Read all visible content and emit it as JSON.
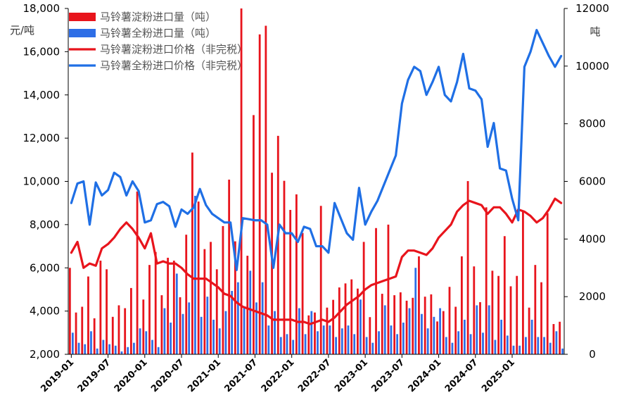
{
  "chart_data": {
    "type": "bar+line",
    "title": "",
    "x_tick_labels": [
      "2019-01",
      "2019-07",
      "2020-01",
      "2020-07",
      "2021-01",
      "2021-07",
      "2022-01",
      "2022-07",
      "2023-01",
      "2023-07",
      "2024-01",
      "2024-07",
      "2025-01"
    ],
    "left_axis": {
      "unit": "元/吨",
      "range": [
        2000,
        18000
      ],
      "ticks": [
        "2,000",
        "4,000",
        "6,000",
        "8,000",
        "10,000",
        "12,000",
        "14,000",
        "16,000",
        "18,000"
      ]
    },
    "right_axis": {
      "unit": "吨",
      "range": [
        0,
        12000
      ],
      "ticks": [
        "0",
        "2000",
        "4000",
        "6000",
        "8000",
        "10000",
        "12000"
      ]
    },
    "legend_position": "top-left",
    "colors": {
      "starch_bar": "#e8141c",
      "flour_bar": "#2e6ee6",
      "starch_line": "#e8141c",
      "flour_line": "#1f6fe5"
    },
    "series": [
      {
        "name": "马铃薯淀粉进口量（吨）",
        "type": "bar",
        "axis": "right",
        "color_key": "starch_bar",
        "values": [
          3000,
          1450,
          1650,
          2700,
          1250,
          3250,
          2950,
          1300,
          1700,
          1600,
          2300,
          5650,
          1900,
          3100,
          3550,
          2050,
          3350,
          3250,
          1980,
          4150,
          7000,
          5300,
          3650,
          3900,
          2950,
          4450,
          6060,
          3920,
          12000,
          3420,
          8300,
          11100,
          11400,
          6300,
          7580,
          6020,
          5010,
          5550,
          4210,
          1350,
          1450,
          5150,
          1620,
          1890,
          2320,
          2460,
          2600,
          2280,
          3900,
          1290,
          4380,
          2100,
          4500,
          2050,
          2150,
          1860,
          1960,
          3400,
          2000,
          2080,
          1140,
          1500,
          2340,
          1650,
          3400,
          6010,
          3050,
          1810,
          5100,
          2900,
          2720,
          4100,
          2360,
          2720,
          4950,
          1620,
          3100,
          2500,
          4900,
          1050,
          1130
        ]
      },
      {
        "name": "马铃薯全粉进口量（吨）",
        "type": "bar",
        "axis": "right",
        "color_key": "flour_bar",
        "values": [
          750,
          400,
          350,
          800,
          200,
          500,
          350,
          300,
          100,
          250,
          400,
          900,
          800,
          500,
          250,
          1600,
          1100,
          2800,
          1400,
          1800,
          5500,
          1300,
          2000,
          1200,
          900,
          1500,
          2200,
          2500,
          1600,
          2900,
          1800,
          2500,
          1000,
          1500,
          600,
          700,
          500,
          1600,
          700,
          1500,
          800,
          1000,
          1000,
          600,
          900,
          1000,
          700,
          1900,
          600,
          400,
          800,
          1700,
          1000,
          700,
          1100,
          1600,
          3000,
          1400,
          900,
          1300,
          1600,
          600,
          400,
          800,
          1200,
          700,
          1700,
          750,
          1700,
          500,
          1200,
          650,
          300,
          300,
          600,
          1200,
          600,
          600,
          400,
          800,
          200
        ]
      },
      {
        "name": "马铃薯淀粉进口价格（非完税）",
        "type": "line",
        "axis": "left",
        "color_key": "starch_line",
        "values": [
          6700,
          7200,
          6000,
          6200,
          6100,
          6900,
          7100,
          7400,
          7800,
          8100,
          7800,
          7400,
          6900,
          7600,
          6200,
          6300,
          6200,
          6200,
          6000,
          5700,
          5500,
          5500,
          5500,
          5300,
          5100,
          4800,
          4700,
          4400,
          4200,
          4100,
          4000,
          3900,
          3800,
          3600,
          3600,
          3600,
          3600,
          3500,
          3500,
          3400,
          3500,
          3600,
          3500,
          3700,
          4000,
          4300,
          4500,
          4700,
          5000,
          5200,
          5300,
          5400,
          5500,
          5600,
          6500,
          6800,
          6800,
          6700,
          6600,
          6900,
          7400,
          7700,
          8000,
          8600,
          8900,
          9100,
          9000,
          8900,
          8500,
          8800,
          8800,
          8500,
          8100,
          8700,
          8600,
          8400,
          8100,
          8300,
          8700,
          9200,
          9000
        ]
      },
      {
        "name": "马铃薯全粉进口价格（非完税）",
        "type": "line",
        "axis": "left",
        "color_key": "flour_line",
        "values": [
          9000,
          9900,
          10000,
          8000,
          9950,
          9350,
          9600,
          10400,
          10200,
          9350,
          10000,
          9550,
          8100,
          8200,
          8950,
          9050,
          8850,
          7900,
          8700,
          8500,
          8800,
          9650,
          8900,
          8500,
          8300,
          8100,
          8100,
          5900,
          8300,
          8250,
          8200,
          8200,
          8000,
          6000,
          8000,
          7600,
          7600,
          7200,
          7900,
          7800,
          7000,
          7000,
          6700,
          9000,
          8300,
          7600,
          7300,
          9700,
          8000,
          8600,
          9100,
          9800,
          10500,
          11200,
          13600,
          14700,
          15300,
          15100,
          14000,
          14600,
          15300,
          14000,
          13700,
          14600,
          15900,
          14300,
          14200,
          13800,
          11600,
          12700,
          10600,
          10500,
          9200,
          8200,
          15300,
          16000,
          17000,
          16400,
          15800,
          15300,
          15800
        ]
      }
    ]
  }
}
